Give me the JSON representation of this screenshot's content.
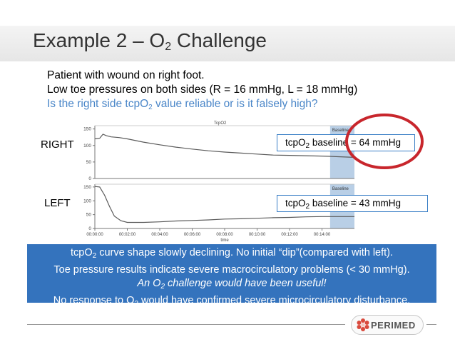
{
  "slide": {
    "title_prefix": "Example 2 – O",
    "title_sub": "2",
    "title_suffix": " Challenge",
    "line1": "Patient with wound on right foot.",
    "line2": "Low toe pressures on both sides (R = 16 mmHg, L = 18 mmHg)",
    "q_prefix": "Is the right side tcpO",
    "q_sub": "2",
    "q_suffix": " value reliable or is it falsely high?",
    "right_label": "RIGHT",
    "left_label": "LEFT",
    "right_box": {
      "pre": "tcpO",
      "sub": "2",
      "post": " baseline = 64 mmHg"
    },
    "left_box": {
      "pre": "tcpO",
      "sub": "2",
      "post": " baseline = 43 mmHg"
    },
    "note": {
      "l1_pre": "tcpO",
      "l1_sub": "2",
      "l1_post": " curve shape slowly declining.  No initial “dip”(compared with left).",
      "l2": "Toe pressure results indicate severe macrocirculatory problems (< 30 mmHg).",
      "l3_pre": "An O",
      "l3_sub": "2",
      "l3_post": " challenge would have been useful!",
      "l4_pre": "No response to O",
      "l4_sub": "2",
      "l4_post": " would have confirmed severe microcirculatory disturbance."
    },
    "logo_text": "PERIMED",
    "highlight_color": "#c8262c",
    "accent_color": "#3473bd"
  },
  "chart_data": {
    "type": "line",
    "header": "TcpO2",
    "baseline_tag": "Baseline",
    "xlabel": "time",
    "x_ticks": [
      "00:00:00",
      "00:02:00",
      "00:04:00",
      "00:06:00",
      "00:08:00",
      "00:10:00",
      "00:12:00",
      "00:14:00"
    ],
    "y_ticks": [
      "0",
      "50",
      "100",
      "150"
    ],
    "ylim": [
      0,
      160
    ],
    "xlim_min": [
      0,
      16
    ],
    "baseline_window_min": [
      14.5,
      16
    ],
    "series": [
      {
        "panel": "top",
        "x": [
          0,
          0.3,
          0.5,
          0.7,
          1,
          1.5,
          2,
          3,
          4,
          5,
          6,
          7,
          8,
          9,
          10,
          11,
          12,
          13,
          14,
          14.5,
          15,
          16
        ],
        "y": [
          120,
          122,
          134,
          130,
          126,
          124,
          120,
          110,
          102,
          95,
          89,
          84,
          80,
          77,
          74,
          71,
          70,
          69,
          68,
          67,
          66,
          64
        ]
      },
      {
        "panel": "bottom",
        "x": [
          0,
          0.3,
          0.6,
          0.9,
          1.2,
          1.6,
          2,
          2.5,
          3,
          4,
          5,
          6,
          7,
          8,
          9,
          10,
          11,
          12,
          13,
          14,
          14.5,
          15,
          16
        ],
        "y": [
          152,
          150,
          120,
          80,
          45,
          28,
          22,
          22,
          22,
          24,
          27,
          29,
          31,
          34,
          35,
          37,
          39,
          40,
          42,
          43,
          43,
          43,
          43
        ]
      }
    ]
  }
}
